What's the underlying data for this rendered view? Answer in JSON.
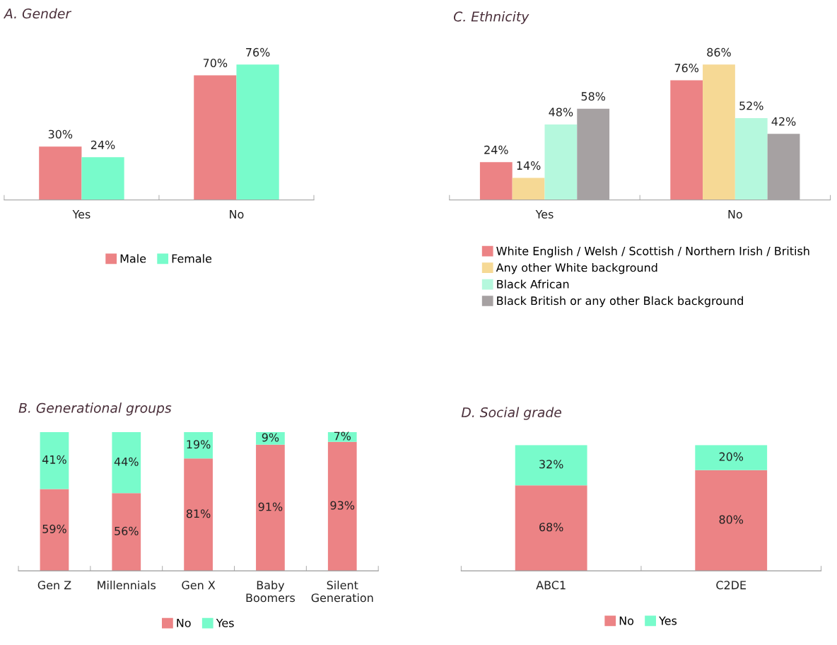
{
  "chart_data": [
    {
      "type": "bar",
      "title": "A. Gender",
      "categories": [
        "Yes",
        "No"
      ],
      "legend": "bottom",
      "series": [
        {
          "name": "Male",
          "color": "#ec8385",
          "values": [
            30,
            70
          ],
          "value_labels": [
            "30%",
            "70%"
          ]
        },
        {
          "name": "Female",
          "color": "#78fbcb",
          "values": [
            24,
            76
          ],
          "value_labels": [
            "24%",
            "76%"
          ]
        }
      ]
    },
    {
      "type": "bar",
      "title": "C. Ethnicity",
      "categories": [
        "Yes",
        "No"
      ],
      "legend": "bottom",
      "series": [
        {
          "name": "White English / Welsh / Scottish / Northern Irish / British",
          "color": "#ec8385",
          "values": [
            24,
            76
          ],
          "value_labels": [
            "24%",
            "76%"
          ]
        },
        {
          "name": "Any other White background",
          "color": "#f6d995",
          "values": [
            14,
            86
          ],
          "value_labels": [
            "14%",
            "86%"
          ]
        },
        {
          "name": "Black African",
          "color": "#b5f8dd",
          "values": [
            48,
            52
          ],
          "value_labels": [
            "48%",
            "52%"
          ]
        },
        {
          "name": "Black British or any other Black background",
          "color": "#a6a1a2",
          "values": [
            58,
            42
          ],
          "value_labels": [
            "58%",
            "42%"
          ]
        }
      ]
    },
    {
      "type": "bar",
      "title": "B. Generational groups",
      "stacked": true,
      "categories": [
        "Gen Z",
        "Millennials",
        "Gen X",
        "Baby\nBoomers",
        "Silent\nGeneration"
      ],
      "legend": "bottom",
      "series": [
        {
          "name": "No",
          "color": "#ec8385",
          "values": [
            59,
            56,
            81,
            91,
            93
          ],
          "value_labels": [
            "59%",
            "56%",
            "81%",
            "91%",
            "93%"
          ]
        },
        {
          "name": "Yes",
          "color": "#78fbcb",
          "values": [
            41,
            44,
            19,
            9,
            7
          ],
          "value_labels": [
            "41%",
            "44%",
            "19%",
            "9%",
            "7%"
          ]
        }
      ]
    },
    {
      "type": "bar",
      "title": "D. Social grade",
      "stacked": true,
      "categories": [
        "ABC1",
        "C2DE"
      ],
      "legend": "bottom",
      "series": [
        {
          "name": "No",
          "color": "#ec8385",
          "values": [
            68,
            80
          ],
          "value_labels": [
            "68%",
            "80%"
          ]
        },
        {
          "name": "Yes",
          "color": "#78fbcb",
          "values": [
            32,
            20
          ],
          "value_labels": [
            "32%",
            "20%"
          ]
        }
      ]
    }
  ]
}
